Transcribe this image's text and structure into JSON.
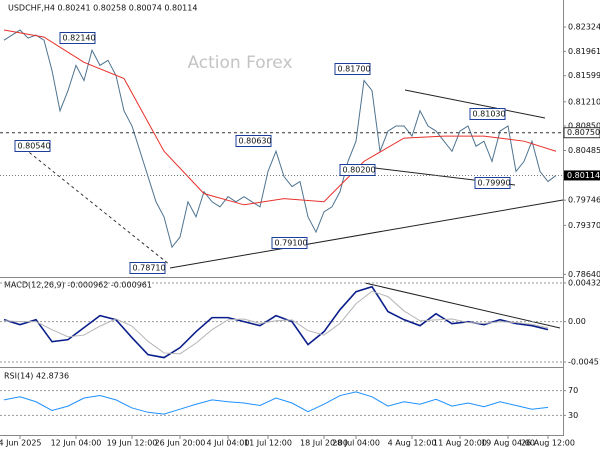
{
  "chart_data": [
    {
      "type": "line",
      "title": "USDCHF,H4  0.80241 0.80258 0.80074 0.80114",
      "watermark": "Action Forex",
      "categories": [
        null,
        null,
        "4 Jun 2025",
        null,
        null,
        null,
        null,
        null,
        null,
        "12 Jun 04:00",
        null,
        null,
        null,
        null,
        null,
        null,
        "19 Jun 12:00",
        null,
        null,
        null,
        null,
        null,
        "26 Jun 20:00",
        null,
        null,
        null,
        null,
        null,
        "4 Jul 04:00",
        null,
        null,
        null,
        null,
        "11 Jul 12:00",
        null,
        null,
        null,
        null,
        null,
        null,
        "18 Jul 20:00",
        null,
        null,
        null,
        "28 Jul 04:00",
        null,
        null,
        null,
        null,
        null,
        null,
        "4 Aug 12:00",
        null,
        null,
        null,
        null,
        null,
        "11 Aug 20:00",
        null,
        null,
        null,
        null,
        null,
        "19 Aug 04:00",
        null,
        null,
        null,
        null,
        "26 Aug 12:00",
        null
      ],
      "series": [
        {
          "color": "#4e7390",
          "values": [
            0.82128,
            0.82204,
            0.82279,
            0.82159,
            0.82204,
            0.82128,
            0.81677,
            0.81076,
            0.81377,
            0.81753,
            0.81527,
            0.81978,
            0.81753,
            0.81828,
            0.81602,
            0.81076,
            0.8085,
            0.80474,
            0.80098,
            0.79722,
            0.79497,
            0.79046,
            0.79196,
            0.79722,
            0.79497,
            0.79873,
            0.79722,
            0.79647,
            0.79798,
            0.79722,
            0.79798,
            0.79722,
            0.79647,
            0.80174,
            0.80474,
            0.80098,
            0.79948,
            0.80023,
            0.79497,
            0.79271,
            0.79572,
            0.79647,
            0.79873,
            0.80323,
            0.80624,
            0.81527,
            0.81377,
            0.80474,
            0.80775,
            0.8085,
            0.8085,
            0.807,
            0.81076,
            0.8085,
            0.80775,
            0.80624,
            0.80474,
            0.80775,
            0.8085,
            0.80549,
            0.80624,
            0.80323,
            0.80775,
            0.8085,
            0.80174,
            0.80323,
            0.80624,
            0.80174,
            0.80023,
            0.80114
          ]
        },
        {
          "color": "#e8302a",
          "x": [
            0,
            5,
            10,
            15,
            20,
            25,
            30,
            35,
            40,
            45,
            50,
            55,
            60,
            65,
            69
          ],
          "values": [
            0.82279,
            0.82174,
            0.81798,
            0.81557,
            0.80474,
            0.79843,
            0.79677,
            0.79768,
            0.79722,
            0.80324,
            0.8067,
            0.807,
            0.807,
            0.80624,
            0.80474
          ]
        }
      ],
      "ylim": [
        0.78602,
        0.82726
      ],
      "yticks": [
        0.82324,
        0.81961,
        0.81599,
        {
          "value": 0.8121,
          "label": "0.81210"
        },
        {
          "value": 0.8085,
          "label": "0.80850"
        },
        0.80485,
        0.79746,
        {
          "value": 0.7937,
          "label": "0.79370"
        },
        {
          "value": 0.7864,
          "label": "0.78640"
        }
      ],
      "level": {
        "value": 0.8075,
        "label": "0.80750"
      },
      "annotations": [
        "0.82140",
        "0.80540",
        "0.80630",
        "0.78710",
        "0.79100",
        "0.81700",
        "0.80200",
        "0.81030",
        "0.79990"
      ]
    },
    {
      "type": "line",
      "title": "MACD(12,26,9) -0.000962 -0.000961",
      "x": [
        0,
        2,
        4,
        6,
        8,
        10,
        12,
        14,
        16,
        18,
        20,
        22,
        24,
        26,
        28,
        30,
        32,
        34,
        36,
        38,
        40,
        42,
        44,
        46,
        48,
        50,
        52,
        54,
        56,
        58,
        60,
        62,
        64,
        66,
        68
      ],
      "series": [
        {
          "color": "#0b1f8c",
          "values": [
            0.00022,
            -0.00034,
            0.00022,
            -0.00224,
            -0.00201,
            -0.00067,
            0.00067,
            0.00022,
            -0.00179,
            -0.00369,
            -0.00402,
            -0.00291,
            -0.00112,
            0.00045,
            0.00045,
            0,
            -0.00045,
            0.00067,
            0,
            -0.00257,
            -0.00112,
            0.00134,
            0.00335,
            0.00391,
            0.00112,
            0.00022,
            -0.00045,
            0.00089,
            -0.00022,
            0,
            -0.00034,
            0.00022,
            -0.00022,
            -0.00045,
            -0.00089
          ]
        },
        {
          "color": "#b5b5b5",
          "values": [
            0.0001,
            0,
            0,
            -0.0009,
            -0.0017,
            -0.0015,
            -0.0005,
            0.0003,
            -0.0005,
            -0.0022,
            -0.0035,
            -0.0036,
            -0.0024,
            -0.0009,
            0.0002,
            0.0003,
            -0.0002,
            0.0001,
            0.0002,
            -0.001,
            -0.0015,
            -0.0002,
            0.002,
            0.0034,
            0.0028,
            0.0012,
            0.0001,
            0.0002,
            0.0003,
            -0.0001,
            -0.0002,
            0,
            -0.0001,
            -0.0003,
            -0.0007
          ]
        }
      ],
      "ylim": [
        -0.00496,
        0.00477
      ],
      "yticks": [
        0.004325,
        {
          "value": 0,
          "label": "0.00"
        },
        -0.004511
      ],
      "grid": true
    },
    {
      "type": "line",
      "title": "RSI(14) 42.8736",
      "x": [
        0,
        2,
        4,
        6,
        8,
        10,
        12,
        14,
        16,
        18,
        20,
        22,
        24,
        26,
        28,
        30,
        32,
        34,
        36,
        38,
        40,
        42,
        44,
        46,
        48,
        50,
        52,
        54,
        56,
        58,
        60,
        62,
        64,
        66,
        68
      ],
      "series": [
        {
          "color": "#1e90ff",
          "values": [
            55,
            60,
            52,
            38,
            45,
            58,
            62,
            55,
            42,
            35,
            32,
            40,
            48,
            55,
            52,
            50,
            46,
            58,
            50,
            36,
            48,
            62,
            68,
            60,
            45,
            52,
            48,
            56,
            45,
            50,
            44,
            52,
            46,
            40,
            43
          ]
        }
      ],
      "ylim": [
        0,
        100
      ],
      "yticks": [
        70,
        30
      ],
      "grid": true
    }
  ]
}
